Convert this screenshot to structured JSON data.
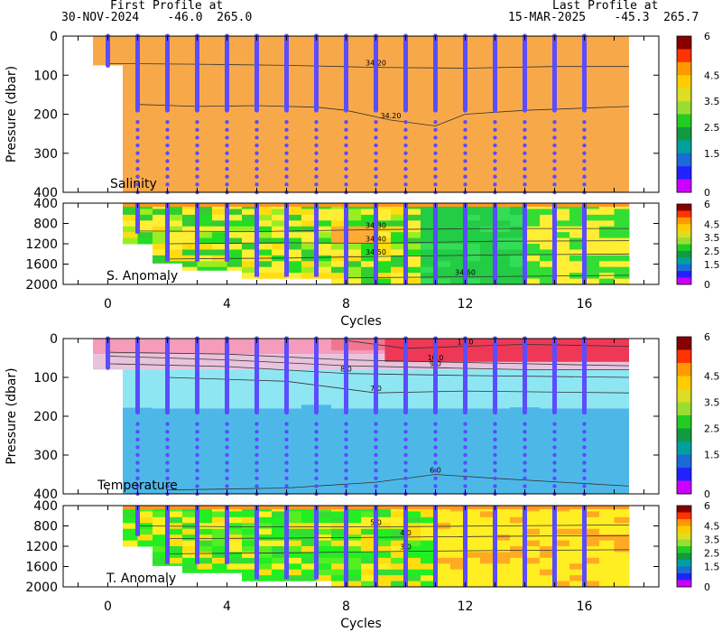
{
  "header": {
    "first_title": "First Profile at",
    "first_value": "30-NOV-2024    -46.0  265.0",
    "last_title": "Last Profile at",
    "last_value": "15-MAR-2025    -45.3  265.7"
  },
  "chart_data": [
    {
      "type": "heatmap",
      "panel": "salinity",
      "annotation": "Salinity",
      "ylabel": "Pressure (dbar)",
      "xlabel": "",
      "ylim": [
        400,
        0
      ],
      "xlim": [
        -1.5,
        18.5
      ],
      "y_ticks": [
        "0",
        "100",
        "200",
        "300",
        "400"
      ],
      "x_ticks": [],
      "field": "uniform orange",
      "contours": [
        {
          "label": "34.20",
          "points": [
            [
              0,
              70
            ],
            [
              3,
              72
            ],
            [
              6,
              75
            ],
            [
              9,
              80
            ],
            [
              12,
              82
            ],
            [
              15,
              78
            ],
            [
              17.5,
              78
            ]
          ]
        },
        {
          "label": "34.20",
          "points": [
            [
              1,
              175
            ],
            [
              3,
              180
            ],
            [
              5,
              178
            ],
            [
              7,
              182
            ],
            [
              8,
              190
            ],
            [
              9.5,
              215
            ],
            [
              11,
              230
            ],
            [
              12,
              200
            ],
            [
              14,
              190
            ],
            [
              17.5,
              180
            ]
          ]
        }
      ],
      "colorbar_ticks": [
        "0",
        "1.5",
        "2.5",
        "3.5",
        "4.5",
        "6"
      ]
    },
    {
      "type": "heatmap",
      "panel": "salinity_anomaly",
      "annotation": "S. Anomaly",
      "ylabel": "",
      "xlabel": "Cycles",
      "ylim": [
        2000,
        400
      ],
      "xlim": [
        -1.5,
        18.5
      ],
      "y_ticks": [
        "400",
        "800",
        "1200",
        "1600",
        "2000"
      ],
      "x_ticks": [
        "0",
        "4",
        "8",
        "12",
        "16"
      ],
      "contours": [
        {
          "label": "34.30",
          "points": [
            [
              1,
              950
            ],
            [
              5,
              960
            ],
            [
              9,
              920
            ],
            [
              13,
              900
            ],
            [
              17.5,
              900
            ]
          ]
        },
        {
          "label": "34.40",
          "points": [
            [
              2,
              1200
            ],
            [
              6,
              1180
            ],
            [
              9,
              1190
            ],
            [
              13,
              1150
            ],
            [
              17.5,
              1140
            ]
          ]
        },
        {
          "label": "34.50",
          "points": [
            [
              2,
              1500
            ],
            [
              6,
              1480
            ],
            [
              9,
              1450
            ],
            [
              13,
              1420
            ],
            [
              17.5,
              1400
            ]
          ]
        },
        {
          "label": "34.60",
          "points": [
            [
              8,
              1870
            ],
            [
              12,
              1850
            ],
            [
              17.5,
              1820
            ]
          ]
        }
      ],
      "colorbar_ticks": [
        "0",
        "1.5",
        "2.5",
        "3.5",
        "4.5",
        "6"
      ]
    },
    {
      "type": "heatmap",
      "panel": "temperature",
      "annotation": "Temperature",
      "ylabel": "Pressure (dbar)",
      "xlabel": "",
      "ylim": [
        400,
        0
      ],
      "xlim": [
        -1.5,
        18.5
      ],
      "y_ticks": [
        "0",
        "100",
        "200",
        "300",
        "400"
      ],
      "x_ticks": [],
      "contours": [
        {
          "label": "11.0",
          "points": [
            [
              8,
              5
            ],
            [
              10,
              25
            ],
            [
              12,
              20
            ],
            [
              14,
              15
            ],
            [
              17.5,
              20
            ]
          ]
        },
        {
          "label": "10.0",
          "points": [
            [
              0,
              35
            ],
            [
              4,
              40
            ],
            [
              8,
              55
            ],
            [
              11,
              60
            ],
            [
              14,
              65
            ],
            [
              17.5,
              70
            ]
          ]
        },
        {
          "label": "9.0",
          "points": [
            [
              0,
              45
            ],
            [
              4,
              55
            ],
            [
              8,
              70
            ],
            [
              11,
              75
            ],
            [
              14,
              80
            ],
            [
              17.5,
              80
            ]
          ]
        },
        {
          "label": "8.0",
          "points": [
            [
              0,
              65
            ],
            [
              4,
              72
            ],
            [
              8,
              90
            ],
            [
              12,
              95
            ],
            [
              17.5,
              100
            ]
          ]
        },
        {
          "label": "7.0",
          "points": [
            [
              2,
              100
            ],
            [
              6,
              110
            ],
            [
              9,
              140
            ],
            [
              12,
              135
            ],
            [
              17.5,
              140
            ]
          ]
        },
        {
          "label": "6.0",
          "points": [
            [
              2,
              390
            ],
            [
              6,
              385
            ],
            [
              9,
              370
            ],
            [
              11,
              350
            ],
            [
              13,
              360
            ],
            [
              17.5,
              380
            ]
          ]
        }
      ],
      "colorbar_ticks": [
        "0",
        "1.5",
        "2.5",
        "3.5",
        "4.5",
        "6"
      ]
    },
    {
      "type": "heatmap",
      "panel": "temperature_anomaly",
      "annotation": "T. Anomaly",
      "ylabel": "",
      "xlabel": "Cycles",
      "ylim": [
        2000,
        400
      ],
      "xlim": [
        -1.5,
        18.5
      ],
      "y_ticks": [
        "400",
        "800",
        "1200",
        "1600",
        "2000"
      ],
      "x_ticks": [
        "0",
        "4",
        "8",
        "12",
        "16"
      ],
      "contours": [
        {
          "label": "5.0",
          "points": [
            [
              1,
              800
            ],
            [
              5,
              820
            ],
            [
              9,
              820
            ],
            [
              13,
              800
            ],
            [
              17.5,
              780
            ]
          ]
        },
        {
          "label": "4.0",
          "points": [
            [
              2,
              1050
            ],
            [
              6,
              1040
            ],
            [
              10,
              1020
            ],
            [
              14,
              1000
            ],
            [
              17.5,
              990
            ]
          ]
        },
        {
          "label": "3.0",
          "points": [
            [
              2,
              1350
            ],
            [
              6,
              1330
            ],
            [
              10,
              1300
            ],
            [
              14,
              1280
            ],
            [
              17.5,
              1270
            ]
          ]
        }
      ],
      "colorbar_ticks": [
        "0",
        "1.5",
        "2.5",
        "3.5",
        "4.5",
        "6"
      ]
    }
  ]
}
